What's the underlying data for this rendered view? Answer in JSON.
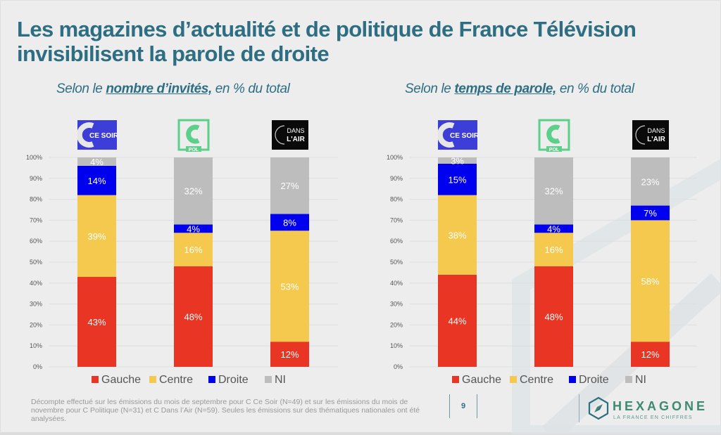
{
  "title": "Les magazines d’actualité et de politique de France Télévision invisibilisent la parole de droite",
  "subtitles": [
    {
      "prefix": "Selon le ",
      "emphasis": "nombre d’invités,",
      "suffix": " en % du total"
    },
    {
      "prefix": "Selon le ",
      "emphasis": "temps de parole,",
      "suffix": " en % du total"
    }
  ],
  "logos": [
    {
      "name": "C Ce Soir",
      "text": "CE SOIR",
      "bg": "#3d3dd8"
    },
    {
      "name": "C Politique",
      "text": "POL",
      "bg": "#5ccf8a"
    },
    {
      "name": "C Dans l'Air",
      "text_top": "DANS",
      "text_bottom": "L'AIR",
      "bg": "#0a0a0a"
    }
  ],
  "colors": {
    "Gauche": "#e93524",
    "Centre": "#f4c94e",
    "Droite": "#0000ee",
    "NI": "#bdbdbd",
    "title": "#2e6e82"
  },
  "chart_data": [
    {
      "type": "bar",
      "stacked": true,
      "title": "Selon le nombre d’invités, en % du total",
      "categories": [
        "C Ce Soir",
        "C Politique",
        "C Dans l'Air"
      ],
      "series": [
        {
          "name": "Gauche",
          "values": [
            43,
            48,
            12
          ]
        },
        {
          "name": "Centre",
          "values": [
            39,
            16,
            53
          ]
        },
        {
          "name": "Droite",
          "values": [
            14,
            4,
            8
          ]
        },
        {
          "name": "NI",
          "values": [
            4,
            32,
            27
          ]
        }
      ],
      "labels": [
        [
          "43%",
          "48%",
          "12%"
        ],
        [
          "39%",
          "16%",
          "53%"
        ],
        [
          "14%",
          "4%",
          "8%"
        ],
        [
          "4%",
          "32%",
          "27%"
        ]
      ],
      "yticks": [
        "0%",
        "10%",
        "20%",
        "30%",
        "40%",
        "50%",
        "60%",
        "70%",
        "80%",
        "90%",
        "100%"
      ],
      "ylim": [
        0,
        100
      ],
      "grid": true,
      "legend": [
        "Gauche",
        "Centre",
        "Droite",
        "NI"
      ],
      "legend_position": "bottom"
    },
    {
      "type": "bar",
      "stacked": true,
      "title": "Selon le temps de parole, en % du total",
      "categories": [
        "C Ce Soir",
        "C Politique",
        "C Dans l'Air"
      ],
      "series": [
        {
          "name": "Gauche",
          "values": [
            44,
            48,
            12
          ]
        },
        {
          "name": "Centre",
          "values": [
            38,
            16,
            58
          ]
        },
        {
          "name": "Droite",
          "values": [
            15,
            4,
            7
          ]
        },
        {
          "name": "NI",
          "values": [
            3,
            32,
            23
          ]
        }
      ],
      "labels": [
        [
          "44%",
          "48%",
          "12%"
        ],
        [
          "38%",
          "16%",
          "58%"
        ],
        [
          "15%",
          "4%",
          "7%"
        ],
        [
          "3%",
          "32%",
          "23%"
        ]
      ],
      "yticks": [
        "0%",
        "10%",
        "20%",
        "30%",
        "40%",
        "50%",
        "60%",
        "70%",
        "80%",
        "90%",
        "100%"
      ],
      "ylim": [
        0,
        100
      ],
      "grid": true,
      "legend": [
        "Gauche",
        "Centre",
        "Droite",
        "NI"
      ],
      "legend_position": "bottom"
    }
  ],
  "footnote": "Décompte effectué sur les émissions du mois de septembre pour C Ce Soir (N=49) et sur les émissions du mois de novembre pour C Politique (N=31) et C Dans l’Air (N=59). Seules les émissions sur des thématiques nationales ont été analysées.",
  "page_number": "9",
  "brand": {
    "name": "HEXAGONE",
    "tagline": "LA FRANCE EN CHIFFRES",
    "icon": "compass-hexagon-icon"
  }
}
